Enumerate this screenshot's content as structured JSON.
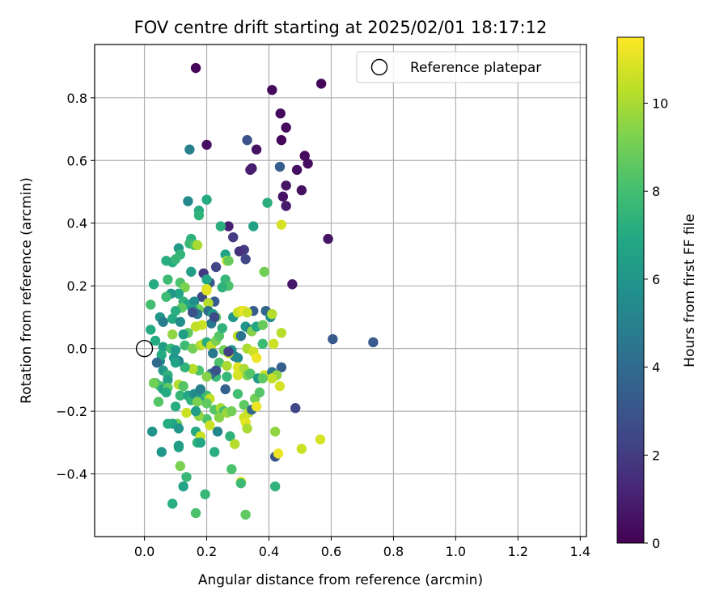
{
  "chart_data": {
    "type": "scatter",
    "title": "FOV centre drift starting at 2025/02/01 18:17:12",
    "xlabel": "Angular distance from reference (arcmin)",
    "ylabel": "Rotation from reference (arcmin)",
    "xlim": [
      -0.16,
      1.42
    ],
    "ylim": [
      -0.6,
      0.97
    ],
    "xticks": [
      "0.0",
      "0.2",
      "0.4",
      "0.6",
      "0.8",
      "1.0",
      "1.2",
      "1.4"
    ],
    "yticks": [
      "−0.4",
      "−0.2",
      "0.0",
      "0.2",
      "0.4",
      "0.6",
      "0.8"
    ],
    "grid": true,
    "legend": {
      "position": "top-right",
      "entries": [
        "Reference platepar"
      ]
    },
    "reference_point": {
      "x": 0.0,
      "y": 0.0
    },
    "colorbar": {
      "label": "Hours from first FF file",
      "min": 0,
      "max": 11.5,
      "ticks": [
        "0",
        "2",
        "4",
        "6",
        "8",
        "10"
      ],
      "colormap": "viridis"
    },
    "points": [
      {
        "x": 0.165,
        "y": 0.895,
        "h": 0.1
      },
      {
        "x": 0.41,
        "y": 0.825,
        "h": 0.3
      },
      {
        "x": 0.568,
        "y": 0.845,
        "h": 0.2
      },
      {
        "x": 0.437,
        "y": 0.75,
        "h": 0.3
      },
      {
        "x": 0.455,
        "y": 0.705,
        "h": 0.4
      },
      {
        "x": 0.44,
        "y": 0.665,
        "h": 0.2
      },
      {
        "x": 0.2,
        "y": 0.65,
        "h": 0.5
      },
      {
        "x": 0.36,
        "y": 0.635,
        "h": 0.6
      },
      {
        "x": 0.515,
        "y": 0.615,
        "h": 0.3
      },
      {
        "x": 0.525,
        "y": 0.59,
        "h": 0.4
      },
      {
        "x": 0.49,
        "y": 0.57,
        "h": 0.5
      },
      {
        "x": 0.345,
        "y": 0.575,
        "h": 0.7
      },
      {
        "x": 0.34,
        "y": 0.57,
        "h": 1.0
      },
      {
        "x": 0.505,
        "y": 0.505,
        "h": 0.5
      },
      {
        "x": 0.445,
        "y": 0.485,
        "h": 0.6
      },
      {
        "x": 0.455,
        "y": 0.52,
        "h": 0.6
      },
      {
        "x": 0.455,
        "y": 0.455,
        "h": 0.8
      },
      {
        "x": 0.59,
        "y": 0.35,
        "h": 0.6
      },
      {
        "x": 0.475,
        "y": 0.205,
        "h": 0.7
      },
      {
        "x": 0.33,
        "y": 0.665,
        "h": 3.0
      },
      {
        "x": 0.435,
        "y": 0.58,
        "h": 3.4
      },
      {
        "x": 0.145,
        "y": 0.635,
        "h": 5.0
      },
      {
        "x": 0.27,
        "y": 0.39,
        "h": 1.0
      },
      {
        "x": 0.285,
        "y": 0.355,
        "h": 2.0
      },
      {
        "x": 0.32,
        "y": 0.315,
        "h": 2.0
      },
      {
        "x": 0.305,
        "y": 0.31,
        "h": 1.6
      },
      {
        "x": 0.325,
        "y": 0.285,
        "h": 2.4
      },
      {
        "x": 0.605,
        "y": 0.03,
        "h": 3.2
      },
      {
        "x": 0.735,
        "y": 0.02,
        "h": 3.3
      },
      {
        "x": 0.485,
        "y": -0.19,
        "h": 2.4
      },
      {
        "x": 0.42,
        "y": -0.345,
        "h": 3.0
      },
      {
        "x": 0.44,
        "y": -0.06,
        "h": 3.5
      },
      {
        "x": 0.35,
        "y": 0.12,
        "h": 3.4
      },
      {
        "x": 0.39,
        "y": 0.12,
        "h": 3.8
      },
      {
        "x": 0.23,
        "y": 0.26,
        "h": 2.4
      },
      {
        "x": 0.19,
        "y": 0.24,
        "h": 2.0
      },
      {
        "x": 0.21,
        "y": 0.21,
        "h": 3.0
      },
      {
        "x": 0.185,
        "y": 0.165,
        "h": 2.6
      },
      {
        "x": 0.225,
        "y": 0.15,
        "h": 3.3
      },
      {
        "x": 0.14,
        "y": 0.47,
        "h": 5.4
      },
      {
        "x": 0.2,
        "y": 0.475,
        "h": 7.0
      },
      {
        "x": 0.175,
        "y": 0.44,
        "h": 7.0
      },
      {
        "x": 0.175,
        "y": 0.425,
        "h": 7.4
      },
      {
        "x": 0.245,
        "y": 0.39,
        "h": 7.2
      },
      {
        "x": 0.35,
        "y": 0.39,
        "h": 6.6
      },
      {
        "x": 0.395,
        "y": 0.465,
        "h": 7.2
      },
      {
        "x": 0.44,
        "y": 0.395,
        "h": 10.8
      },
      {
        "x": 0.15,
        "y": 0.35,
        "h": 7.3
      },
      {
        "x": 0.145,
        "y": 0.335,
        "h": 7.6
      },
      {
        "x": 0.16,
        "y": 0.33,
        "h": 8.2
      },
      {
        "x": 0.17,
        "y": 0.33,
        "h": 10.0
      },
      {
        "x": 0.11,
        "y": 0.32,
        "h": 6.2
      },
      {
        "x": 0.115,
        "y": 0.3,
        "h": 7.5
      },
      {
        "x": 0.07,
        "y": 0.28,
        "h": 7.2
      },
      {
        "x": 0.09,
        "y": 0.275,
        "h": 7.0
      },
      {
        "x": 0.1,
        "y": 0.285,
        "h": 7.6
      },
      {
        "x": 0.26,
        "y": 0.3,
        "h": 6.6
      },
      {
        "x": 0.265,
        "y": 0.28,
        "h": 10.4
      },
      {
        "x": 0.27,
        "y": 0.28,
        "h": 8.8
      },
      {
        "x": 0.385,
        "y": 0.245,
        "h": 9.0
      },
      {
        "x": 0.15,
        "y": 0.245,
        "h": 6.4
      },
      {
        "x": 0.2,
        "y": 0.22,
        "h": 6.8
      },
      {
        "x": 0.26,
        "y": 0.22,
        "h": 7.6
      },
      {
        "x": 0.27,
        "y": 0.2,
        "h": 8.2
      },
      {
        "x": 0.25,
        "y": 0.195,
        "h": 7.4
      },
      {
        "x": 0.03,
        "y": 0.205,
        "h": 7.0
      },
      {
        "x": 0.075,
        "y": 0.22,
        "h": 7.8
      },
      {
        "x": 0.115,
        "y": 0.21,
        "h": 8.2
      },
      {
        "x": 0.13,
        "y": 0.195,
        "h": 9.2
      },
      {
        "x": 0.2,
        "y": 0.19,
        "h": 10.6
      },
      {
        "x": 0.2,
        "y": 0.185,
        "h": 11.0
      },
      {
        "x": 0.11,
        "y": 0.175,
        "h": 6.8
      },
      {
        "x": 0.085,
        "y": 0.175,
        "h": 6.0
      },
      {
        "x": 0.07,
        "y": 0.165,
        "h": 7.8
      },
      {
        "x": 0.02,
        "y": 0.14,
        "h": 8.0
      },
      {
        "x": 0.125,
        "y": 0.15,
        "h": 7.4
      },
      {
        "x": 0.14,
        "y": 0.14,
        "h": 6.8
      },
      {
        "x": 0.16,
        "y": 0.15,
        "h": 5.6
      },
      {
        "x": 0.205,
        "y": 0.145,
        "h": 10.2
      },
      {
        "x": 0.175,
        "y": 0.125,
        "h": 9.0
      },
      {
        "x": 0.155,
        "y": 0.125,
        "h": 6.4
      },
      {
        "x": 0.12,
        "y": 0.13,
        "h": 8.6
      },
      {
        "x": 0.1,
        "y": 0.12,
        "h": 7.2
      },
      {
        "x": 0.05,
        "y": 0.1,
        "h": 6.0
      },
      {
        "x": 0.06,
        "y": 0.085,
        "h": 4.8
      },
      {
        "x": 0.09,
        "y": 0.095,
        "h": 7.0
      },
      {
        "x": 0.115,
        "y": 0.085,
        "h": 5.6
      },
      {
        "x": 0.17,
        "y": 0.11,
        "h": 4.6
      },
      {
        "x": 0.205,
        "y": 0.12,
        "h": 4.2
      },
      {
        "x": 0.22,
        "y": 0.11,
        "h": 6.2
      },
      {
        "x": 0.23,
        "y": 0.1,
        "h": 8.6
      },
      {
        "x": 0.215,
        "y": 0.08,
        "h": 4.6
      },
      {
        "x": 0.185,
        "y": 0.075,
        "h": 10.6
      },
      {
        "x": 0.165,
        "y": 0.07,
        "h": 10.4
      },
      {
        "x": 0.14,
        "y": 0.05,
        "h": 8.6
      },
      {
        "x": 0.125,
        "y": 0.045,
        "h": 6.4
      },
      {
        "x": 0.09,
        "y": 0.045,
        "h": 9.6
      },
      {
        "x": 0.02,
        "y": 0.06,
        "h": 7.0
      },
      {
        "x": 0.035,
        "y": 0.025,
        "h": 7.0
      },
      {
        "x": 0.06,
        "y": 0.005,
        "h": 6.4
      },
      {
        "x": 0.085,
        "y": 0.0,
        "h": 7.8
      },
      {
        "x": 0.1,
        "y": -0.005,
        "h": 6.2
      },
      {
        "x": 0.13,
        "y": 0.01,
        "h": 7.8
      },
      {
        "x": 0.155,
        "y": 0.0,
        "h": 9.0
      },
      {
        "x": 0.18,
        "y": 0.01,
        "h": 10.0
      },
      {
        "x": 0.19,
        "y": 0.015,
        "h": 10.6
      },
      {
        "x": 0.2,
        "y": 0.02,
        "h": 7.2
      },
      {
        "x": 0.215,
        "y": 0.01,
        "h": 10.4
      },
      {
        "x": 0.23,
        "y": 0.025,
        "h": 9.2
      },
      {
        "x": 0.24,
        "y": 0.04,
        "h": 8.4
      },
      {
        "x": 0.25,
        "y": 0.065,
        "h": 7.4
      },
      {
        "x": 0.285,
        "y": 0.1,
        "h": 6.0
      },
      {
        "x": 0.3,
        "y": 0.115,
        "h": 10.4
      },
      {
        "x": 0.31,
        "y": 0.12,
        "h": 10.8
      },
      {
        "x": 0.32,
        "y": 0.12,
        "h": 11.2
      },
      {
        "x": 0.33,
        "y": 0.115,
        "h": 10.6
      },
      {
        "x": 0.325,
        "y": 0.07,
        "h": 6.0
      },
      {
        "x": 0.34,
        "y": 0.06,
        "h": 5.0
      },
      {
        "x": 0.345,
        "y": 0.055,
        "h": 9.4
      },
      {
        "x": 0.36,
        "y": 0.07,
        "h": 6.8
      },
      {
        "x": 0.38,
        "y": 0.075,
        "h": 8.8
      },
      {
        "x": 0.405,
        "y": 0.1,
        "h": 5.6
      },
      {
        "x": 0.41,
        "y": 0.11,
        "h": 10.2
      },
      {
        "x": 0.3,
        "y": 0.04,
        "h": 10.4
      },
      {
        "x": 0.31,
        "y": 0.04,
        "h": 4.4
      },
      {
        "x": 0.33,
        "y": 0.0,
        "h": 10.0
      },
      {
        "x": 0.35,
        "y": -0.01,
        "h": 10.6
      },
      {
        "x": 0.36,
        "y": -0.03,
        "h": 11.2
      },
      {
        "x": 0.38,
        "y": 0.015,
        "h": 7.8
      },
      {
        "x": 0.415,
        "y": 0.015,
        "h": 10.6
      },
      {
        "x": 0.44,
        "y": 0.05,
        "h": 10.2
      },
      {
        "x": 0.28,
        "y": -0.005,
        "h": 5.8
      },
      {
        "x": 0.29,
        "y": -0.025,
        "h": 4.8
      },
      {
        "x": 0.3,
        "y": -0.03,
        "h": 5.4
      },
      {
        "x": 0.27,
        "y": -0.015,
        "h": 10.4
      },
      {
        "x": 0.255,
        "y": -0.005,
        "h": 9.0
      },
      {
        "x": 0.22,
        "y": -0.015,
        "h": 4.6
      },
      {
        "x": 0.24,
        "y": -0.045,
        "h": 8.2
      },
      {
        "x": 0.265,
        "y": -0.055,
        "h": 10.0
      },
      {
        "x": 0.3,
        "y": -0.06,
        "h": 11.0
      },
      {
        "x": 0.32,
        "y": -0.065,
        "h": 10.0
      },
      {
        "x": 0.33,
        "y": -0.085,
        "h": 9.2
      },
      {
        "x": 0.34,
        "y": -0.08,
        "h": 8.4
      },
      {
        "x": 0.365,
        "y": -0.095,
        "h": 6.2
      },
      {
        "x": 0.385,
        "y": -0.085,
        "h": 10.6
      },
      {
        "x": 0.41,
        "y": -0.075,
        "h": 4.6
      },
      {
        "x": 0.425,
        "y": -0.085,
        "h": 9.6
      },
      {
        "x": 0.41,
        "y": -0.095,
        "h": 10.4
      },
      {
        "x": 0.435,
        "y": -0.12,
        "h": 10.8
      },
      {
        "x": 0.38,
        "y": -0.095,
        "h": 8.6
      },
      {
        "x": 0.3,
        "y": -0.085,
        "h": 10.8
      },
      {
        "x": 0.265,
        "y": -0.09,
        "h": 7.6
      },
      {
        "x": 0.23,
        "y": -0.09,
        "h": 7.8
      },
      {
        "x": 0.215,
        "y": -0.08,
        "h": 4.2
      },
      {
        "x": 0.2,
        "y": -0.09,
        "h": 9.4
      },
      {
        "x": 0.175,
        "y": -0.07,
        "h": 8.2
      },
      {
        "x": 0.155,
        "y": -0.065,
        "h": 10.2
      },
      {
        "x": 0.13,
        "y": -0.06,
        "h": 7.4
      },
      {
        "x": 0.11,
        "y": -0.04,
        "h": 5.2
      },
      {
        "x": 0.095,
        "y": -0.03,
        "h": 6.0
      },
      {
        "x": 0.1,
        "y": -0.045,
        "h": 6.6
      },
      {
        "x": 0.05,
        "y": -0.04,
        "h": 5.4
      },
      {
        "x": 0.055,
        "y": -0.02,
        "h": 7.0
      },
      {
        "x": 0.06,
        "y": -0.07,
        "h": 6.2
      },
      {
        "x": 0.075,
        "y": -0.085,
        "h": 7.4
      },
      {
        "x": 0.075,
        "y": -0.1,
        "h": 6.4
      },
      {
        "x": 0.035,
        "y": -0.11,
        "h": 7.4
      },
      {
        "x": 0.05,
        "y": -0.12,
        "h": 8.0
      },
      {
        "x": 0.06,
        "y": -0.13,
        "h": 6.6
      },
      {
        "x": 0.075,
        "y": -0.125,
        "h": 8.6
      },
      {
        "x": 0.07,
        "y": -0.14,
        "h": 7.0
      },
      {
        "x": 0.11,
        "y": -0.115,
        "h": 10.2
      },
      {
        "x": 0.115,
        "y": -0.15,
        "h": 7.6
      },
      {
        "x": 0.125,
        "y": -0.12,
        "h": 8.4
      },
      {
        "x": 0.14,
        "y": -0.15,
        "h": 6.8
      },
      {
        "x": 0.15,
        "y": -0.165,
        "h": 7.4
      },
      {
        "x": 0.16,
        "y": -0.145,
        "h": 5.6
      },
      {
        "x": 0.18,
        "y": -0.16,
        "h": 6.0
      },
      {
        "x": 0.2,
        "y": -0.15,
        "h": 7.8
      },
      {
        "x": 0.21,
        "y": -0.16,
        "h": 10.4
      },
      {
        "x": 0.17,
        "y": -0.17,
        "h": 9.2
      },
      {
        "x": 0.2,
        "y": -0.175,
        "h": 8.6
      },
      {
        "x": 0.225,
        "y": -0.195,
        "h": 8.4
      },
      {
        "x": 0.245,
        "y": -0.19,
        "h": 10.0
      },
      {
        "x": 0.255,
        "y": -0.2,
        "h": 8.0
      },
      {
        "x": 0.24,
        "y": -0.22,
        "h": 9.4
      },
      {
        "x": 0.265,
        "y": -0.205,
        "h": 9.8
      },
      {
        "x": 0.28,
        "y": -0.2,
        "h": 9.0
      },
      {
        "x": 0.3,
        "y": -0.145,
        "h": 8.0
      },
      {
        "x": 0.32,
        "y": -0.18,
        "h": 8.6
      },
      {
        "x": 0.335,
        "y": -0.205,
        "h": 10.4
      },
      {
        "x": 0.345,
        "y": -0.195,
        "h": 3.8
      },
      {
        "x": 0.355,
        "y": -0.16,
        "h": 9.0
      },
      {
        "x": 0.36,
        "y": -0.185,
        "h": 11.2
      },
      {
        "x": 0.37,
        "y": -0.14,
        "h": 8.4
      },
      {
        "x": 0.32,
        "y": -0.22,
        "h": 10.6
      },
      {
        "x": 0.325,
        "y": -0.235,
        "h": 11.0
      },
      {
        "x": 0.33,
        "y": -0.255,
        "h": 10.0
      },
      {
        "x": 0.2,
        "y": -0.225,
        "h": 8.2
      },
      {
        "x": 0.21,
        "y": -0.245,
        "h": 10.6
      },
      {
        "x": 0.175,
        "y": -0.215,
        "h": 9.6
      },
      {
        "x": 0.135,
        "y": -0.205,
        "h": 10.6
      },
      {
        "x": 0.1,
        "y": -0.185,
        "h": 7.2
      },
      {
        "x": 0.045,
        "y": -0.17,
        "h": 8.4
      },
      {
        "x": 0.03,
        "y": -0.11,
        "h": 9.0
      },
      {
        "x": 0.105,
        "y": -0.24,
        "h": 9.0
      },
      {
        "x": 0.09,
        "y": -0.24,
        "h": 6.6
      },
      {
        "x": 0.11,
        "y": -0.255,
        "h": 6.0
      },
      {
        "x": 0.075,
        "y": -0.24,
        "h": 7.0
      },
      {
        "x": 0.025,
        "y": -0.265,
        "h": 5.8
      },
      {
        "x": 0.165,
        "y": -0.265,
        "h": 7.0
      },
      {
        "x": 0.18,
        "y": -0.28,
        "h": 10.6
      },
      {
        "x": 0.235,
        "y": -0.265,
        "h": 5.2
      },
      {
        "x": 0.275,
        "y": -0.28,
        "h": 7.4
      },
      {
        "x": 0.29,
        "y": -0.305,
        "h": 10.2
      },
      {
        "x": 0.17,
        "y": -0.3,
        "h": 7.4
      },
      {
        "x": 0.18,
        "y": -0.3,
        "h": 6.8
      },
      {
        "x": 0.225,
        "y": -0.33,
        "h": 7.2
      },
      {
        "x": 0.11,
        "y": -0.315,
        "h": 6.8
      },
      {
        "x": 0.11,
        "y": -0.31,
        "h": 6.4
      },
      {
        "x": 0.055,
        "y": -0.33,
        "h": 6.0
      },
      {
        "x": 0.42,
        "y": -0.265,
        "h": 9.6
      },
      {
        "x": 0.43,
        "y": -0.335,
        "h": 11.2
      },
      {
        "x": 0.505,
        "y": -0.32,
        "h": 10.6
      },
      {
        "x": 0.565,
        "y": -0.29,
        "h": 10.8
      },
      {
        "x": 0.115,
        "y": -0.375,
        "h": 9.2
      },
      {
        "x": 0.135,
        "y": -0.41,
        "h": 7.6
      },
      {
        "x": 0.28,
        "y": -0.385,
        "h": 8.2
      },
      {
        "x": 0.31,
        "y": -0.425,
        "h": 11.0
      },
      {
        "x": 0.31,
        "y": -0.43,
        "h": 7.8
      },
      {
        "x": 0.125,
        "y": -0.44,
        "h": 6.6
      },
      {
        "x": 0.42,
        "y": -0.44,
        "h": 7.4
      },
      {
        "x": 0.195,
        "y": -0.465,
        "h": 7.6
      },
      {
        "x": 0.09,
        "y": -0.495,
        "h": 7.2
      },
      {
        "x": 0.165,
        "y": -0.525,
        "h": 8.2
      },
      {
        "x": 0.325,
        "y": -0.53,
        "h": 8.6
      },
      {
        "x": 0.165,
        "y": -0.2,
        "h": 6.4
      },
      {
        "x": 0.18,
        "y": -0.13,
        "h": 5.0
      },
      {
        "x": 0.26,
        "y": -0.13,
        "h": 3.6
      },
      {
        "x": 0.04,
        "y": -0.045,
        "h": 4.0
      },
      {
        "x": 0.23,
        "y": -0.07,
        "h": 3.0
      },
      {
        "x": 0.155,
        "y": 0.115,
        "h": 2.8
      },
      {
        "x": 0.225,
        "y": 0.1,
        "h": 2.6
      },
      {
        "x": 0.27,
        "y": -0.01,
        "h": 2.2
      }
    ]
  }
}
